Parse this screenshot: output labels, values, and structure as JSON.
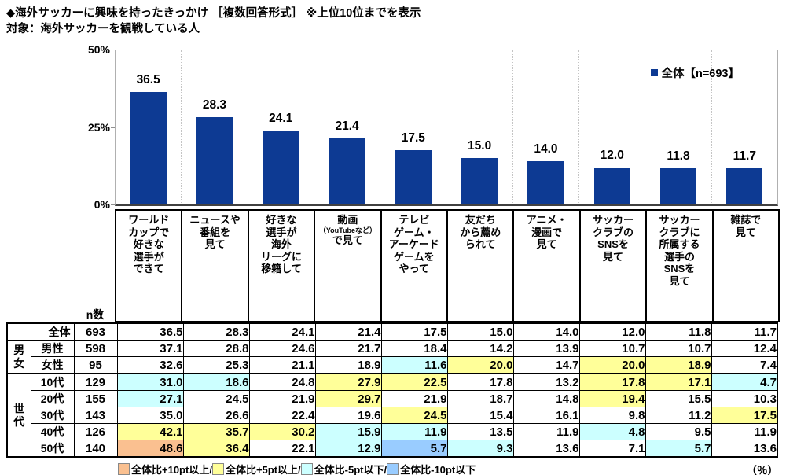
{
  "header": {
    "title": "◆海外サッカーに興味を持ったきっかけ ［複数回答形式］ ※上位10位までを表示",
    "subject": "対象：海外サッカーを観戦している人"
  },
  "chart_data": {
    "type": "bar",
    "title": "海外サッカーに興味を持ったきっかけ",
    "legend_label": "全体【n=693】",
    "bar_color": "#0D3A93",
    "ylim": [
      0,
      50
    ],
    "yticks": [
      "50%",
      "25%",
      "0%"
    ],
    "grid": "vertical-dotted",
    "legend_position": "top-right",
    "values": [
      "36.5",
      "28.3",
      "24.1",
      "21.4",
      "17.5",
      "15.0",
      "14.0",
      "12.0",
      "11.8",
      "11.7"
    ],
    "categories": [
      {
        "lines": [
          "ワールド",
          "カップで",
          "好きな",
          "選手が",
          "できて"
        ]
      },
      {
        "lines": [
          "ニュースや",
          "番組を",
          "見て"
        ]
      },
      {
        "lines": [
          "好きな",
          "選手が",
          "海外",
          "リーグに",
          "移籍して"
        ]
      },
      {
        "lines": [
          "動画",
          {
            "text": "（YouTubeなど）",
            "small": true
          },
          "で見て"
        ]
      },
      {
        "lines": [
          "テレビ",
          "ゲーム・",
          "アーケード",
          "ゲームを",
          "やって"
        ]
      },
      {
        "lines": [
          "友だち",
          "から薦め",
          "られて"
        ]
      },
      {
        "lines": [
          "アニメ・",
          "漫画で",
          "見て"
        ]
      },
      {
        "lines": [
          "サッカー",
          "クラブの",
          "SNSを",
          "見て"
        ]
      },
      {
        "lines": [
          "サッカー",
          "クラブに",
          "所属する",
          "選手の",
          "SNSを",
          "見て"
        ]
      },
      {
        "lines": [
          "雑誌で",
          "見て"
        ]
      }
    ]
  },
  "table": {
    "n_header": "n数",
    "highlight_colors": {
      "plus10": "#FAC090",
      "plus5": "#FFFF99",
      "minus5": "#CCFFFF",
      "minus10": "#99CCFF"
    },
    "rows": [
      {
        "merged": true,
        "label": "全体",
        "n": "693",
        "values": [
          "36.5",
          "28.3",
          "24.1",
          "21.4",
          "17.5",
          "15.0",
          "14.0",
          "12.0",
          "11.8",
          "11.7"
        ],
        "highlights": [
          null,
          null,
          null,
          null,
          null,
          null,
          null,
          null,
          null,
          null
        ]
      },
      {
        "group": "男\n女",
        "group_span": 2,
        "label": "男性",
        "n": "598",
        "values": [
          "37.1",
          "28.8",
          "24.6",
          "21.7",
          "18.4",
          "14.2",
          "13.9",
          "10.7",
          "10.7",
          "12.4"
        ],
        "highlights": [
          null,
          null,
          null,
          null,
          null,
          null,
          null,
          null,
          null,
          null
        ]
      },
      {
        "label": "女性",
        "n": "95",
        "values": [
          "32.6",
          "25.3",
          "21.1",
          "18.9",
          "11.6",
          "20.0",
          "14.7",
          "20.0",
          "18.9",
          "7.4"
        ],
        "highlights": [
          null,
          null,
          null,
          null,
          "minus5",
          "plus5",
          null,
          "plus5",
          "plus5",
          null
        ]
      },
      {
        "group": "世\n代",
        "group_span": 5,
        "gen_first": true,
        "label": "10代",
        "n": "129",
        "values": [
          "31.0",
          "18.6",
          "24.8",
          "27.9",
          "22.5",
          "17.8",
          "13.2",
          "17.8",
          "17.1",
          "4.7"
        ],
        "highlights": [
          "minus5",
          "minus5",
          null,
          "plus5",
          "plus5",
          null,
          null,
          "plus5",
          "plus5",
          "minus5"
        ]
      },
      {
        "label": "20代",
        "n": "155",
        "values": [
          "27.1",
          "24.5",
          "21.9",
          "29.7",
          "21.9",
          "18.7",
          "14.8",
          "19.4",
          "15.5",
          "10.3"
        ],
        "highlights": [
          "minus5",
          null,
          null,
          "plus5",
          null,
          null,
          null,
          "plus5",
          null,
          null
        ]
      },
      {
        "label": "30代",
        "n": "143",
        "values": [
          "35.0",
          "26.6",
          "22.4",
          "19.6",
          "24.5",
          "15.4",
          "16.1",
          "9.8",
          "11.2",
          "17.5"
        ],
        "highlights": [
          null,
          null,
          null,
          null,
          "plus5",
          null,
          null,
          null,
          null,
          "plus5"
        ]
      },
      {
        "label": "40代",
        "n": "126",
        "values": [
          "42.1",
          "35.7",
          "30.2",
          "15.9",
          "11.9",
          "13.5",
          "11.9",
          "4.8",
          "9.5",
          "11.9"
        ],
        "highlights": [
          "plus5",
          "plus5",
          "plus5",
          "minus5",
          "minus5",
          null,
          null,
          "minus5",
          null,
          null
        ]
      },
      {
        "label": "50代",
        "n": "140",
        "values": [
          "48.6",
          "36.4",
          "22.1",
          "12.9",
          "5.7",
          "9.3",
          "13.6",
          "7.1",
          "5.7",
          "13.6"
        ],
        "highlights": [
          "plus10",
          "plus5",
          null,
          "minus5",
          "minus10",
          "minus5",
          null,
          null,
          "minus5",
          null
        ]
      }
    ]
  },
  "legend_bottom": {
    "items": [
      {
        "key": "plus10",
        "color": "#FAC090",
        "label": "全体比+10pt以上/"
      },
      {
        "key": "plus5",
        "color": "#FFFF99",
        "label": "全体比+5pt以上/"
      },
      {
        "key": "minus5",
        "color": "#CCFFFF",
        "label": "全体比-5pt以下/"
      },
      {
        "key": "minus10",
        "color": "#99CCFF",
        "label": "全体比-10pt以下"
      }
    ],
    "unit": "（％）"
  }
}
